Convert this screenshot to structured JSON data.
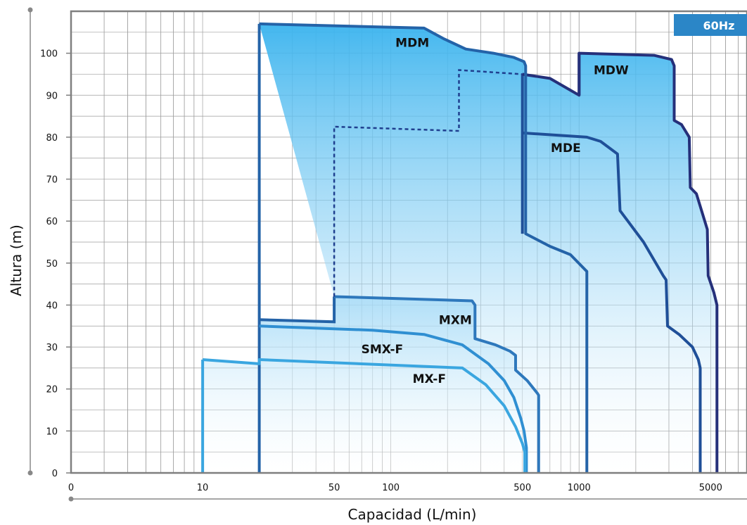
{
  "chart_data": {
    "type": "area",
    "badge": "60Hz",
    "xlabel": "Capacidad (L/min)",
    "ylabel": "Altura (m)",
    "x_scale": "log",
    "xlim": [
      2,
      7800
    ],
    "ylim": [
      0,
      110
    ],
    "x_ticks": [
      "0",
      "10",
      "50",
      "100",
      "500",
      "1000",
      "5000"
    ],
    "y_ticks": [
      "0",
      "10",
      "20",
      "30",
      "40",
      "50",
      "60",
      "70",
      "80",
      "90",
      "100"
    ],
    "grid": true,
    "colors": {
      "frame": "#7f7f7f",
      "grid": "#9e9e9e",
      "badge": "#2b86c7",
      "fill_dark": "#39b3ee",
      "fill_light": "#ffffff",
      "MDW": "#25307a",
      "MDE": "#1f4f98",
      "MDM": "#2463a8",
      "MXM": "#2e78bc",
      "SMX-F": "#2f8fd2",
      "MX-F": "#3aa6e0"
    },
    "series": [
      {
        "name": "MDW",
        "points": [
          [
            500,
            95
          ],
          [
            700,
            94
          ],
          [
            1000,
            90
          ],
          [
            1000,
            100
          ],
          [
            2500,
            99.5
          ],
          [
            3100,
            98.5
          ],
          [
            3200,
            97
          ],
          [
            3200,
            84
          ],
          [
            3500,
            83
          ],
          [
            3850,
            80
          ],
          [
            3900,
            68
          ],
          [
            4200,
            66.5
          ],
          [
            4800,
            58
          ],
          [
            4850,
            47
          ],
          [
            5200,
            43
          ],
          [
            5400,
            40
          ],
          [
            5400,
            0
          ]
        ]
      },
      {
        "name": "MDE",
        "points": [
          [
            500,
            81
          ],
          [
            1100,
            80
          ],
          [
            1300,
            79
          ],
          [
            1600,
            76
          ],
          [
            1650,
            62.5
          ],
          [
            2200,
            55
          ],
          [
            2800,
            47
          ],
          [
            2900,
            46
          ],
          [
            2950,
            35
          ],
          [
            3400,
            33
          ],
          [
            4000,
            30
          ],
          [
            4300,
            27
          ],
          [
            4400,
            25
          ],
          [
            4400,
            0
          ]
        ]
      },
      {
        "name": "MDM",
        "points": [
          [
            20,
            107
          ],
          [
            150,
            106
          ],
          [
            190,
            103.5
          ],
          [
            250,
            101
          ],
          [
            350,
            100
          ],
          [
            450,
            99
          ],
          [
            510,
            98
          ],
          [
            520,
            97
          ],
          [
            520,
            57
          ],
          [
            700,
            54
          ],
          [
            900,
            52
          ],
          [
            1100,
            48
          ],
          [
            1100,
            0
          ]
        ]
      },
      {
        "name": "MXM",
        "points": [
          [
            50,
            42
          ],
          [
            270,
            41
          ],
          [
            280,
            40
          ],
          [
            280,
            32
          ],
          [
            360,
            30.5
          ],
          [
            430,
            29
          ],
          [
            460,
            28
          ],
          [
            460,
            24.5
          ],
          [
            530,
            22
          ],
          [
            600,
            19
          ],
          [
            610,
            18.5
          ],
          [
            610,
            0
          ]
        ]
      },
      {
        "name": "SMX-F",
        "points": [
          [
            20,
            35
          ],
          [
            80,
            34
          ],
          [
            150,
            33
          ],
          [
            240,
            30.5
          ],
          [
            330,
            26
          ],
          [
            400,
            22
          ],
          [
            450,
            18
          ],
          [
            490,
            13
          ],
          [
            510,
            10
          ],
          [
            525,
            6
          ],
          [
            525,
            0
          ]
        ]
      },
      {
        "name": "MX-F",
        "points": [
          [
            10,
            27
          ],
          [
            20,
            26
          ],
          [
            20,
            27
          ],
          [
            240,
            25
          ],
          [
            320,
            21
          ],
          [
            400,
            16
          ],
          [
            460,
            11
          ],
          [
            500,
            7
          ],
          [
            515,
            5
          ],
          [
            515,
            0
          ]
        ]
      }
    ],
    "dashed_boundary": [
      [
        50,
        42
      ],
      [
        50,
        82.5
      ],
      [
        230,
        81.5
      ],
      [
        230,
        96
      ],
      [
        500,
        95
      ]
    ],
    "labels": {
      "MDM": "MDM",
      "MDW": "MDW",
      "MDE": "MDE",
      "MXM": "MXM",
      "SMX-F": "SMX-F",
      "MX-F": "MX-F"
    }
  }
}
